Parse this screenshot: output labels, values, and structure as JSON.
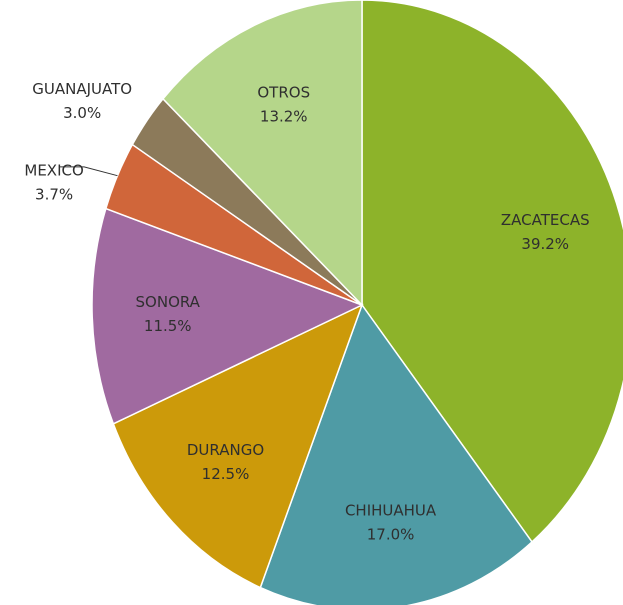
{
  "chart_data": {
    "type": "pie",
    "categories": [
      "ZACATECAS",
      "CHIHUAHUA",
      "DURANGO",
      "SONORA",
      "MEXICO",
      "GUANAJUATO",
      "OTROS"
    ],
    "values": [
      39.2,
      17.0,
      12.5,
      11.5,
      3.7,
      3.0,
      13.2
    ],
    "value_labels": [
      "39.2%",
      "17.0%",
      "12.5%",
      "11.5%",
      "3.7%",
      "3.0%",
      "13.2%"
    ],
    "colors": [
      "#8db32a",
      "#4f9ba5",
      "#cc9a0a",
      "#a06aa0",
      "#d0663a",
      "#8c7a5a",
      "#b5d68a"
    ]
  }
}
